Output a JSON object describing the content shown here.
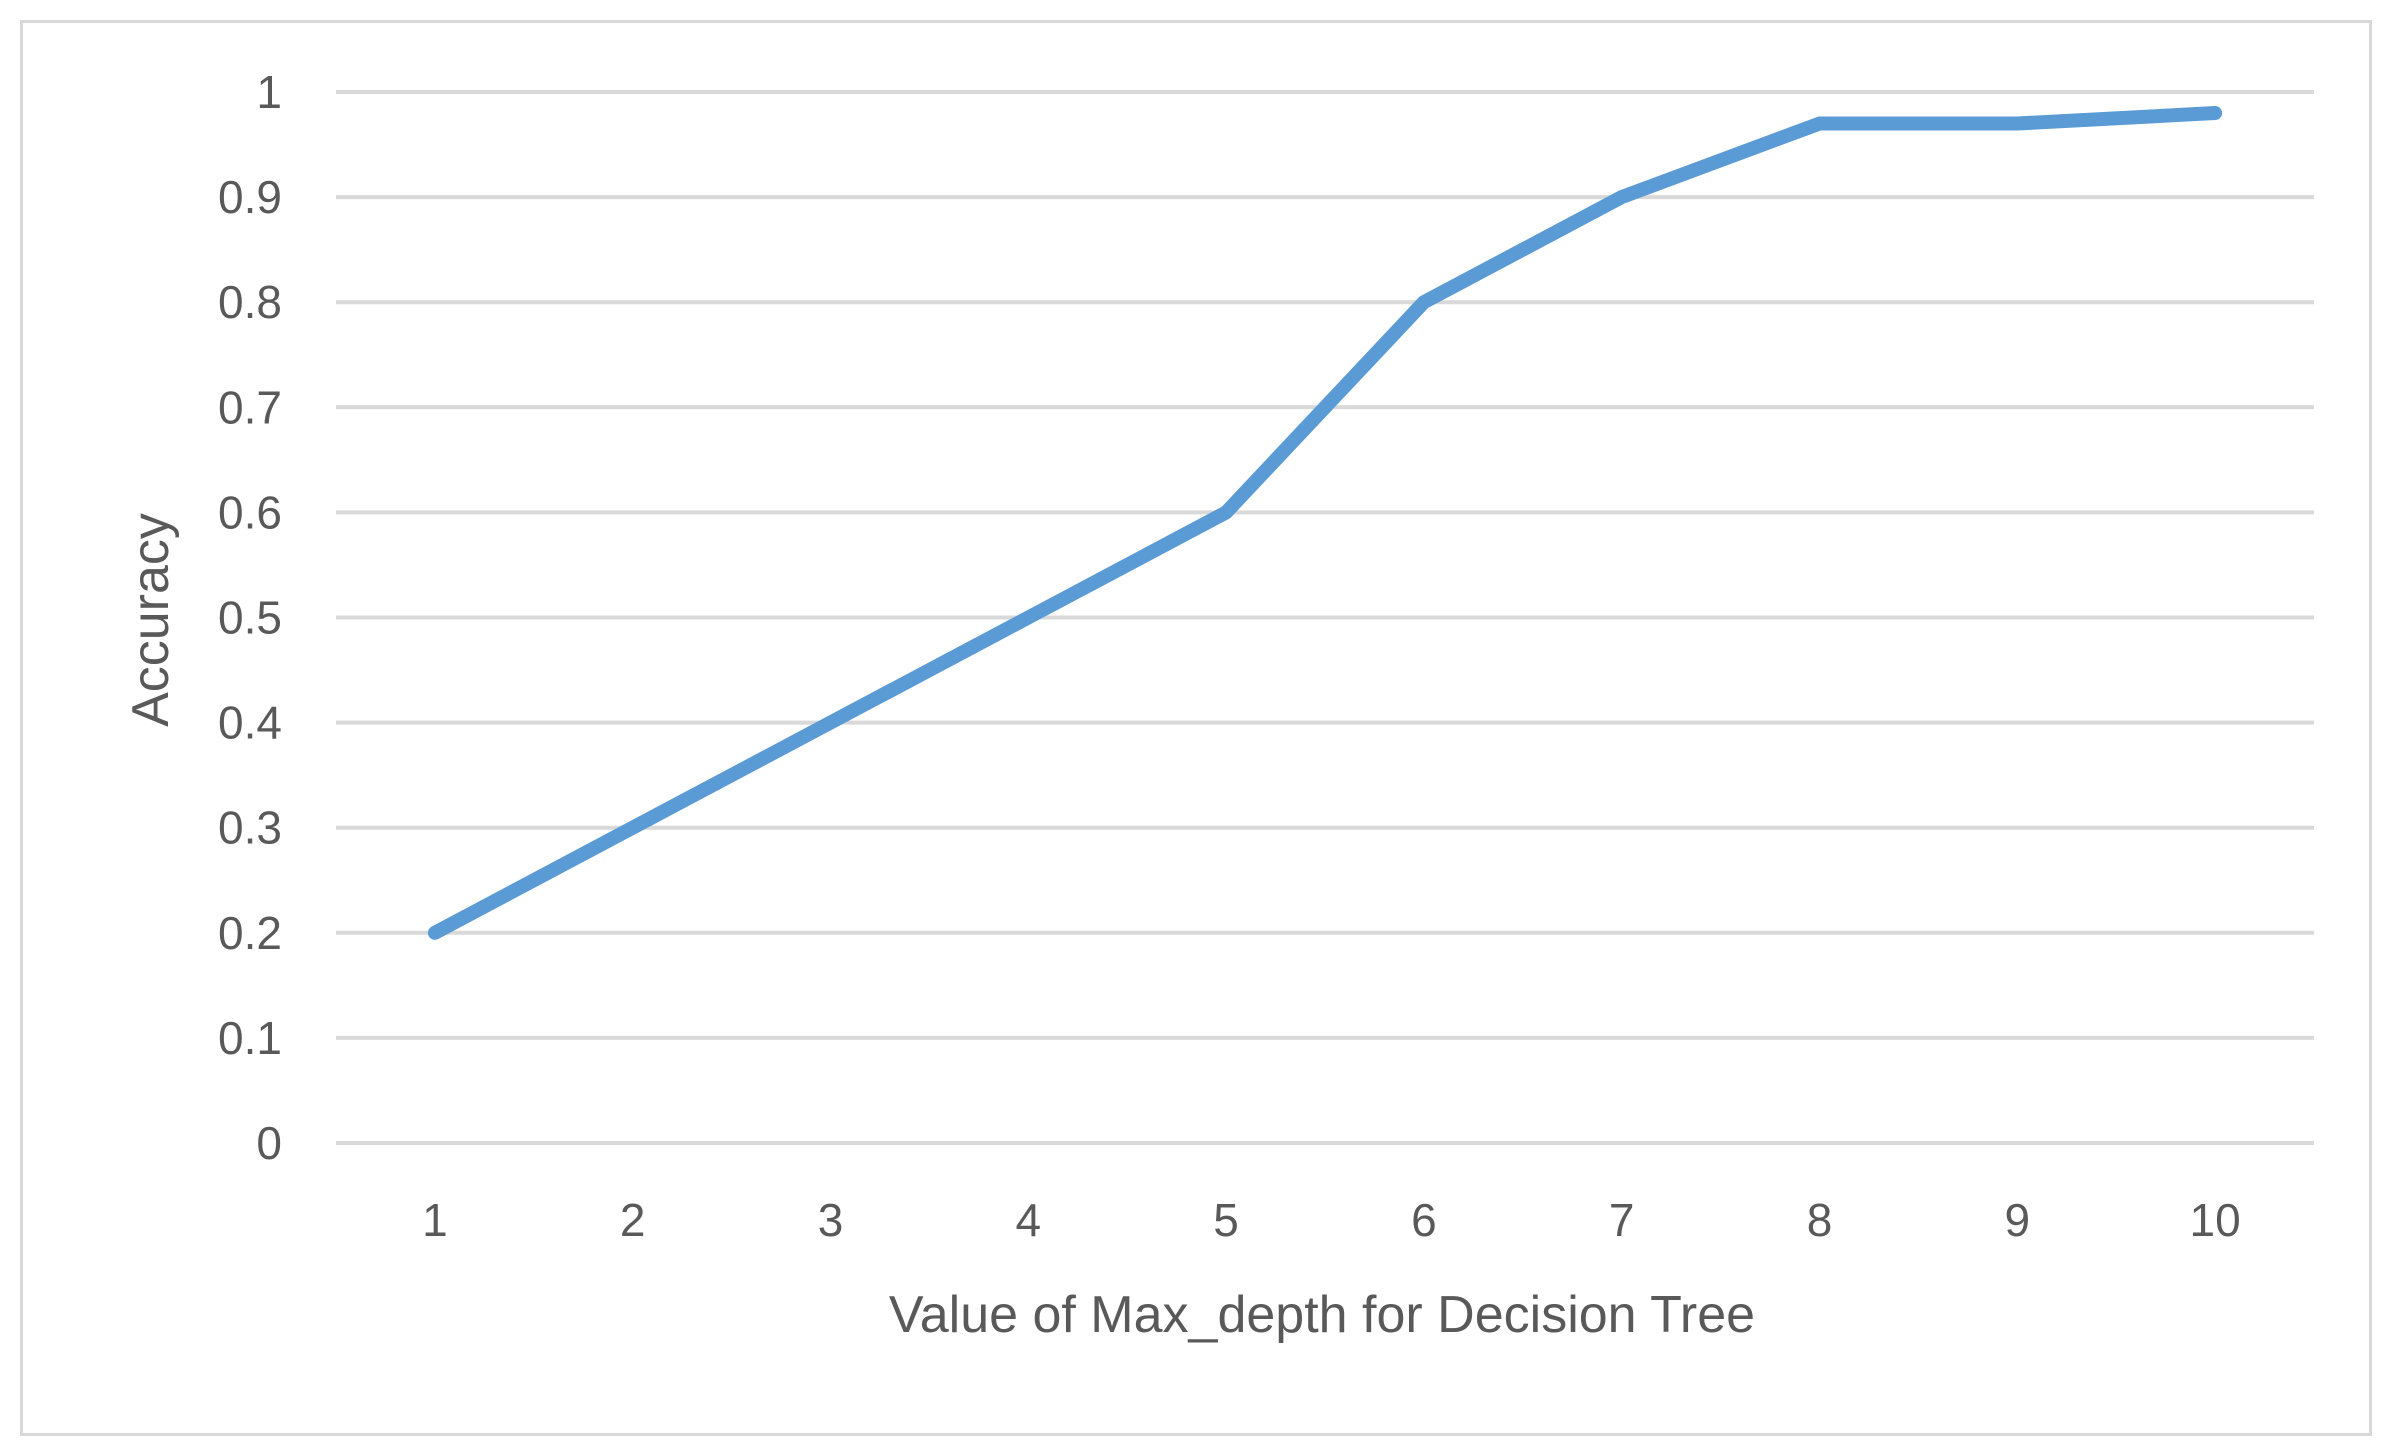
{
  "chart_data": {
    "type": "line",
    "title": "",
    "xlabel": "Value of Max_depth for Decision Tree",
    "ylabel": "Accuracy",
    "categories": [
      "1",
      "2",
      "3",
      "4",
      "5",
      "6",
      "7",
      "8",
      "9",
      "10"
    ],
    "series": [
      {
        "values": [
          0.2,
          0.3,
          0.4,
          0.5,
          0.6,
          0.8,
          0.9,
          0.97,
          0.97,
          0.98
        ],
        "color": "#5b9bd5"
      }
    ],
    "ylim": [
      0,
      1
    ],
    "yticks": [
      "0",
      "0.1",
      "0.2",
      "0.3",
      "0.4",
      "0.5",
      "0.6",
      "0.7",
      "0.8",
      "0.9",
      "1"
    ],
    "grid": true,
    "legend": "none",
    "colors": {
      "grid": "#d9d9d9",
      "text": "#595959",
      "border": "#d9d9d9"
    }
  }
}
